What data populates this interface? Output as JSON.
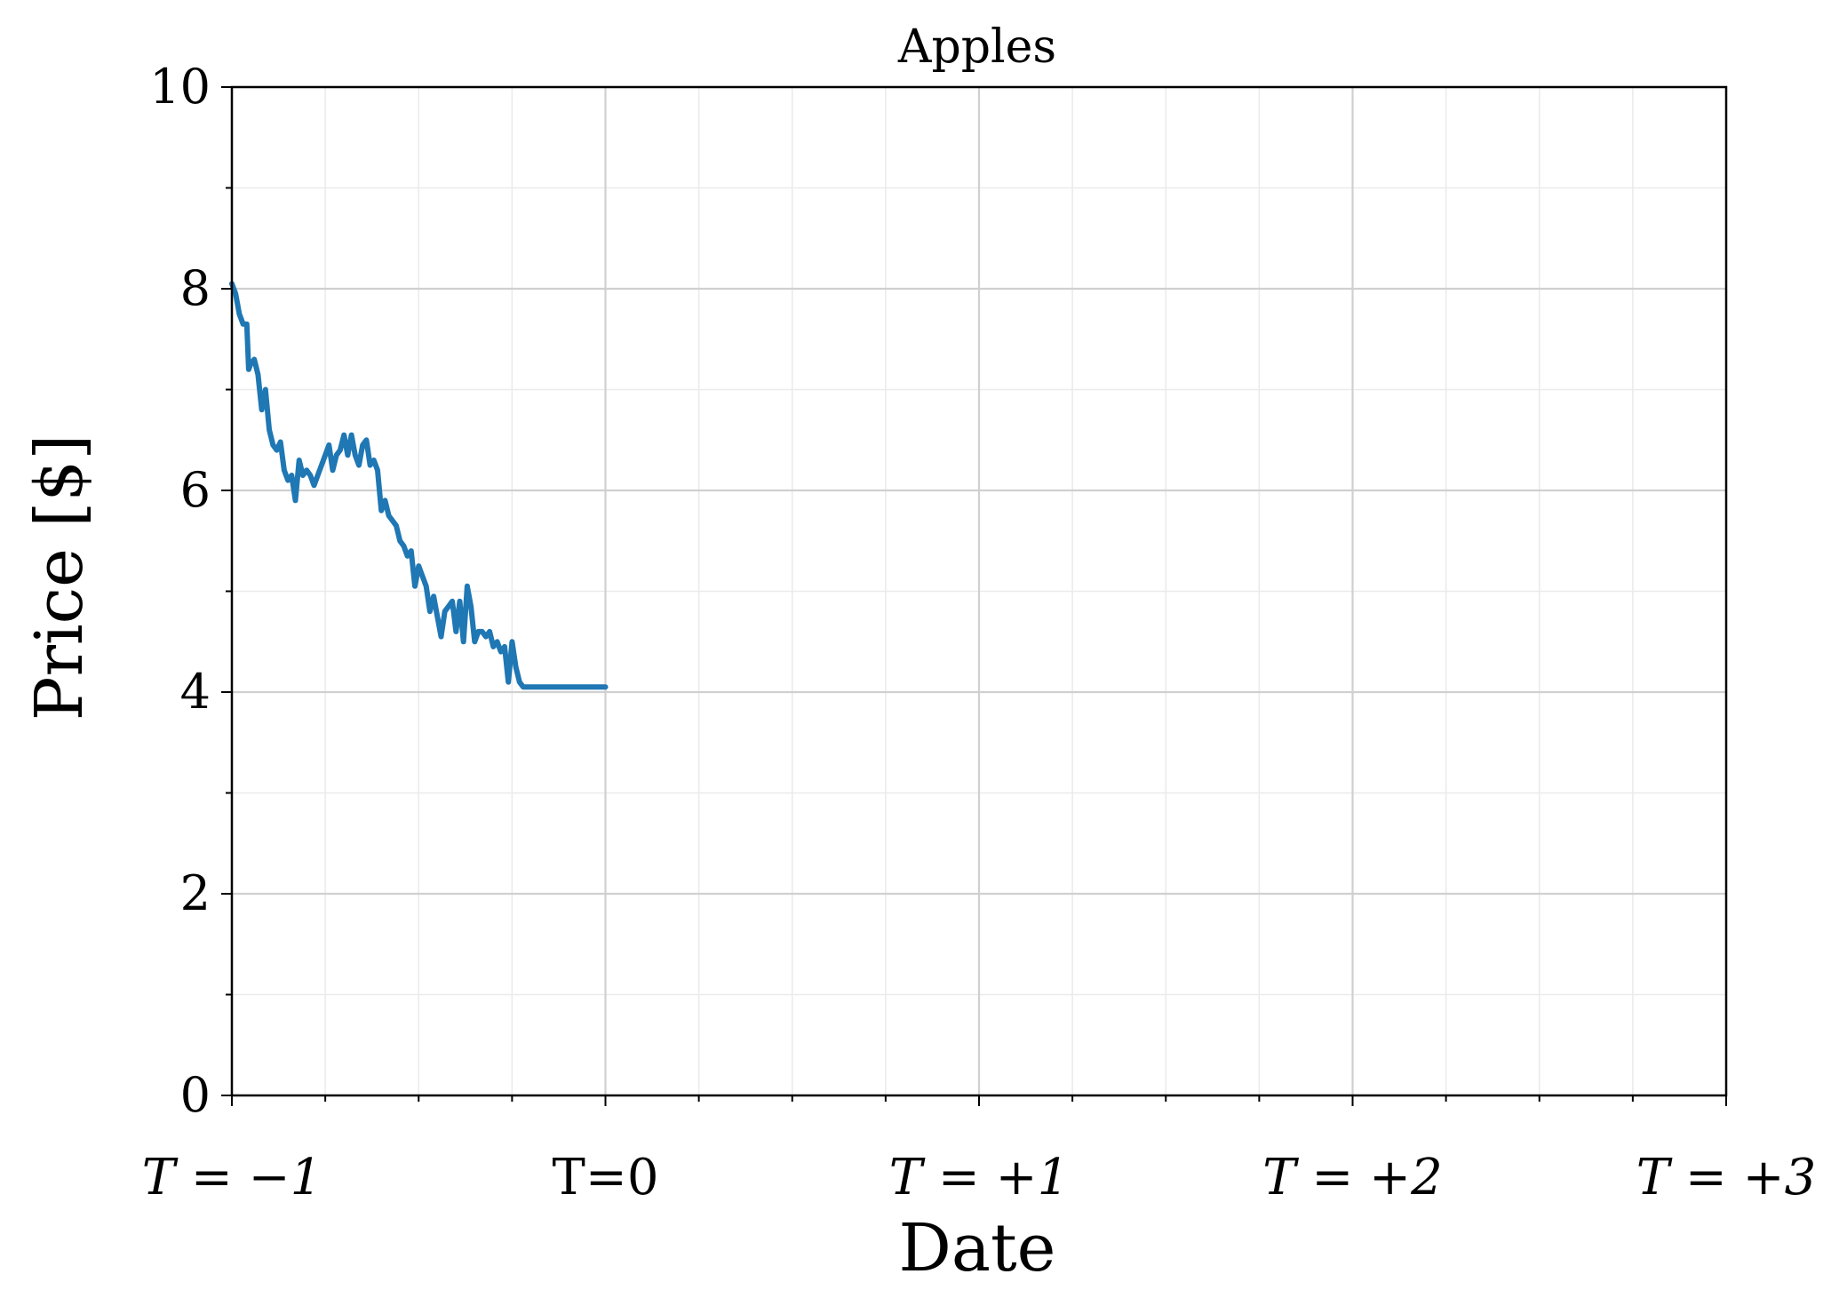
{
  "chart_data": {
    "type": "line",
    "title": "Apples",
    "xlabel": "Date",
    "ylabel": "Price [$]",
    "xlim": [
      -1,
      3
    ],
    "ylim": [
      0,
      10
    ],
    "grid": true,
    "x_ticks": [
      {
        "value": -1,
        "label": "T = −1"
      },
      {
        "value": 0,
        "label": "T=0"
      },
      {
        "value": 1,
        "label": "T = +1"
      },
      {
        "value": 2,
        "label": "T = +2"
      },
      {
        "value": 3,
        "label": "T = +3"
      }
    ],
    "y_ticks": [
      {
        "value": 0,
        "label": "0"
      },
      {
        "value": 2,
        "label": "2"
      },
      {
        "value": 4,
        "label": "4"
      },
      {
        "value": 6,
        "label": "6"
      },
      {
        "value": 8,
        "label": "8"
      },
      {
        "value": 10,
        "label": "10"
      }
    ],
    "series": [
      {
        "color": "#1f77b4",
        "x": [
          -1.0,
          -0.99,
          -0.98,
          -0.97,
          -0.96,
          -0.955,
          -0.95,
          -0.94,
          -0.93,
          -0.92,
          -0.91,
          -0.9,
          -0.89,
          -0.88,
          -0.87,
          -0.86,
          -0.85,
          -0.84,
          -0.83,
          -0.82,
          -0.81,
          -0.8,
          -0.79,
          -0.78,
          -0.77,
          -0.76,
          -0.75,
          -0.74,
          -0.73,
          -0.72,
          -0.71,
          -0.7,
          -0.69,
          -0.68,
          -0.67,
          -0.66,
          -0.65,
          -0.64,
          -0.63,
          -0.62,
          -0.61,
          -0.6,
          -0.59,
          -0.58,
          -0.57,
          -0.56,
          -0.55,
          -0.54,
          -0.53,
          -0.52,
          -0.51,
          -0.5,
          -0.49,
          -0.48,
          -0.47,
          -0.46,
          -0.45,
          -0.44,
          -0.43,
          -0.42,
          -0.41,
          -0.4,
          -0.39,
          -0.38,
          -0.37,
          -0.36,
          -0.35,
          -0.34,
          -0.33,
          -0.32,
          -0.31,
          -0.3,
          -0.29,
          -0.28,
          -0.27,
          -0.26,
          -0.25,
          -0.24,
          -0.23,
          -0.22,
          -0.21,
          -0.2,
          -0.19,
          -0.18,
          -0.17,
          -0.16,
          -0.15,
          -0.14,
          -0.13,
          -0.12,
          -0.11,
          -0.1,
          -0.09,
          -0.08,
          -0.07,
          -0.06,
          -0.05,
          -0.04,
          -0.03,
          -0.02,
          -0.01,
          0.0
        ],
        "y": [
          8.05,
          7.95,
          7.75,
          7.65,
          7.65,
          7.2,
          7.25,
          7.3,
          7.15,
          6.8,
          7.0,
          6.6,
          6.45,
          6.4,
          6.48,
          6.2,
          6.1,
          6.15,
          5.9,
          6.3,
          6.15,
          6.2,
          6.15,
          6.05,
          6.15,
          6.25,
          6.35,
          6.45,
          6.2,
          6.35,
          6.4,
          6.55,
          6.35,
          6.55,
          6.35,
          6.25,
          6.45,
          6.5,
          6.25,
          6.3,
          6.2,
          5.8,
          5.9,
          5.75,
          5.7,
          5.65,
          5.5,
          5.45,
          5.35,
          5.4,
          5.05,
          5.25,
          5.15,
          5.05,
          4.8,
          4.95,
          4.75,
          4.55,
          4.8,
          4.85,
          4.9,
          4.6,
          4.9,
          4.5,
          5.05,
          4.85,
          4.5,
          4.6,
          4.6,
          4.55,
          4.6,
          4.45,
          4.5,
          4.4,
          4.45,
          4.1,
          4.5,
          4.25,
          4.1,
          4.05,
          4.05,
          4.05,
          4.05,
          4.05,
          4.05,
          4.05,
          4.05,
          4.05,
          4.05,
          4.05,
          4.05,
          4.05,
          4.05,
          4.05,
          4.05,
          4.05,
          4.05,
          4.05,
          4.05,
          4.05,
          4.05,
          4.05
        ]
      }
    ]
  }
}
